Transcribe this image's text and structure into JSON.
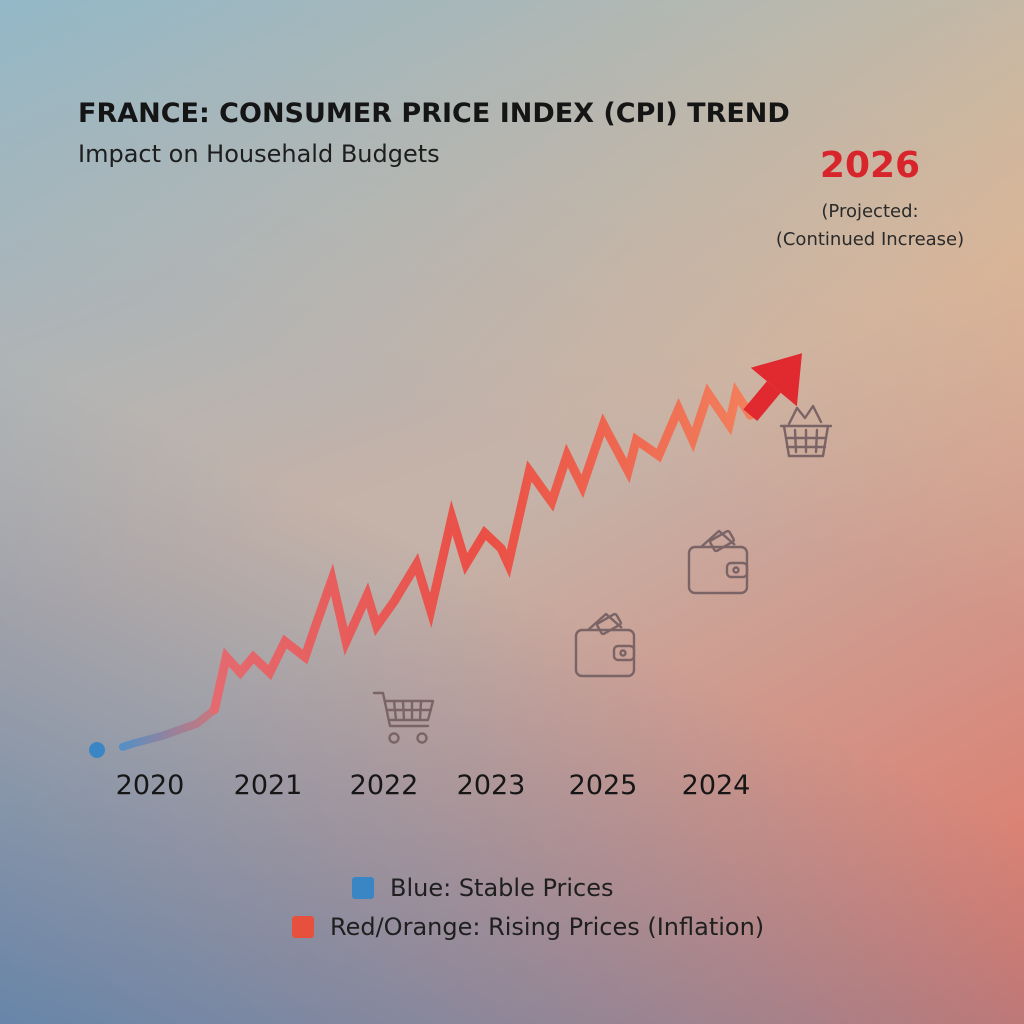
{
  "header": {
    "title": "FRANCE: CONSUMER PRICE INDEX (CPI) TREND",
    "subtitle": "Impact on Househald Budgets"
  },
  "projection": {
    "year": "2026",
    "note_line1": "(Projected:",
    "note_line2": "(Continued Increase)"
  },
  "legend": {
    "items": [
      {
        "label": "Blue: Stable Prices",
        "color": "#3a86c4"
      },
      {
        "label": "Red/Orange: Rising Prices (Inflation)",
        "color": "#e8503e"
      }
    ]
  },
  "icons": [
    "shopping-cart-icon",
    "wallet-icon",
    "wallet-icon",
    "shopping-basket-icon"
  ],
  "chart_data": {
    "type": "line",
    "title": "FRANCE: CONSUMER PRICE INDEX (CPI) TREND",
    "subtitle": "Impact on Househald Budgets",
    "xlabel": "",
    "ylabel": "",
    "x_tick_labels": [
      "2020",
      "2021",
      "2022",
      "2023",
      "2025",
      "2024"
    ],
    "grid": false,
    "legend_position": "bottom-center",
    "colors": {
      "stable": "#3a86c4",
      "rising": "#e8503e",
      "projection": "#e02a2f"
    },
    "series": [
      {
        "name": "Blue: Stable Prices",
        "x": [
          0.0,
          0.3,
          0.55,
          0.85,
          1.0
        ],
        "y": [
          0.0,
          0.2,
          0.45,
          0.85,
          1.3
        ]
      },
      {
        "name": "Red/Orange: Rising Prices (Inflation)",
        "x": [
          1.0,
          1.1,
          1.22,
          1.33,
          1.47,
          1.6,
          1.77,
          1.86,
          2.0,
          2.12,
          2.3,
          2.38,
          2.53,
          2.72,
          2.84,
          3.02,
          3.14,
          3.3,
          3.44,
          3.5,
          3.68,
          3.87,
          4.0,
          4.13,
          4.31,
          4.52,
          4.59,
          4.78,
          4.95,
          5.07,
          5.2,
          5.38,
          5.44,
          5.56
        ],
        "y": [
          1.3,
          3.0,
          2.5,
          3.0,
          2.5,
          3.5,
          3.0,
          4.0,
          5.5,
          3.5,
          5.0,
          4.0,
          4.8,
          6.0,
          4.5,
          7.5,
          6.0,
          7.0,
          6.5,
          6.0,
          9.0,
          8.0,
          9.5,
          8.5,
          10.5,
          9.0,
          10.0,
          9.5,
          11.0,
          10.0,
          11.5,
          10.5,
          11.5,
          10.8
        ]
      }
    ],
    "projection": {
      "label": "2026",
      "x": [
        5.56,
        6.0
      ],
      "y": [
        10.8,
        12.8
      ]
    }
  }
}
